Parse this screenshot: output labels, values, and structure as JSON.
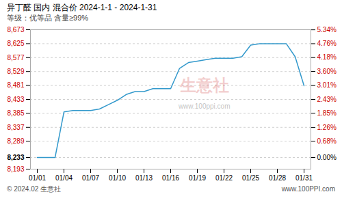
{
  "chart_data": {
    "type": "line",
    "title": "异丁醛 国内 混合价 2024-1-1 - 2024-1-31",
    "subtitle": "等级：优等品 含量≥99%",
    "categories": [
      "01/01",
      null,
      null,
      "01/04",
      null,
      null,
      "01/07",
      null,
      null,
      "01/10",
      null,
      null,
      "01/13",
      null,
      null,
      "01/16",
      null,
      null,
      "01/19",
      null,
      null,
      "01/22",
      null,
      null,
      "01/25",
      null,
      null,
      "01/28",
      null,
      null,
      "01/31"
    ],
    "values": [
      8233,
      8233,
      8233,
      8390,
      8395,
      8395,
      8395,
      8400,
      8415,
      8430,
      8450,
      8460,
      8460,
      8470,
      8470,
      8470,
      8540,
      8560,
      8565,
      8570,
      8575,
      8575,
      8575,
      8580,
      8620,
      8625,
      8625,
      8625,
      8625,
      8580,
      8480
    ],
    "color": "#3399cc",
    "ylim": [
      8193,
      8673
    ],
    "yticks": [
      8193,
      8233,
      8289,
      8337,
      8385,
      8433,
      8481,
      8529,
      8577,
      8625,
      8673
    ],
    "y2lim": [
      -0.48585,
      5.34435
    ],
    "y2ticks": [
      {
        "value": 0,
        "label": "0.00%"
      },
      {
        "value": 0.68,
        "label": "0.68%"
      },
      {
        "value": 1.26,
        "label": "1.26%"
      },
      {
        "value": 1.85,
        "label": "1.85%"
      },
      {
        "value": 2.43,
        "label": "2.43%"
      },
      {
        "value": 3.01,
        "label": "3.01%"
      },
      {
        "value": 3.6,
        "label": "3.60%"
      },
      {
        "value": 4.18,
        "label": "4.18%"
      },
      {
        "value": 4.76,
        "label": "4.76%"
      },
      {
        "value": 5.34,
        "label": "5.34%"
      }
    ],
    "grid": true,
    "annotations": [
      "生意社",
      "www.100ppi.com",
      "© 2024.02 生意社",
      "www.100PPI.com"
    ]
  }
}
